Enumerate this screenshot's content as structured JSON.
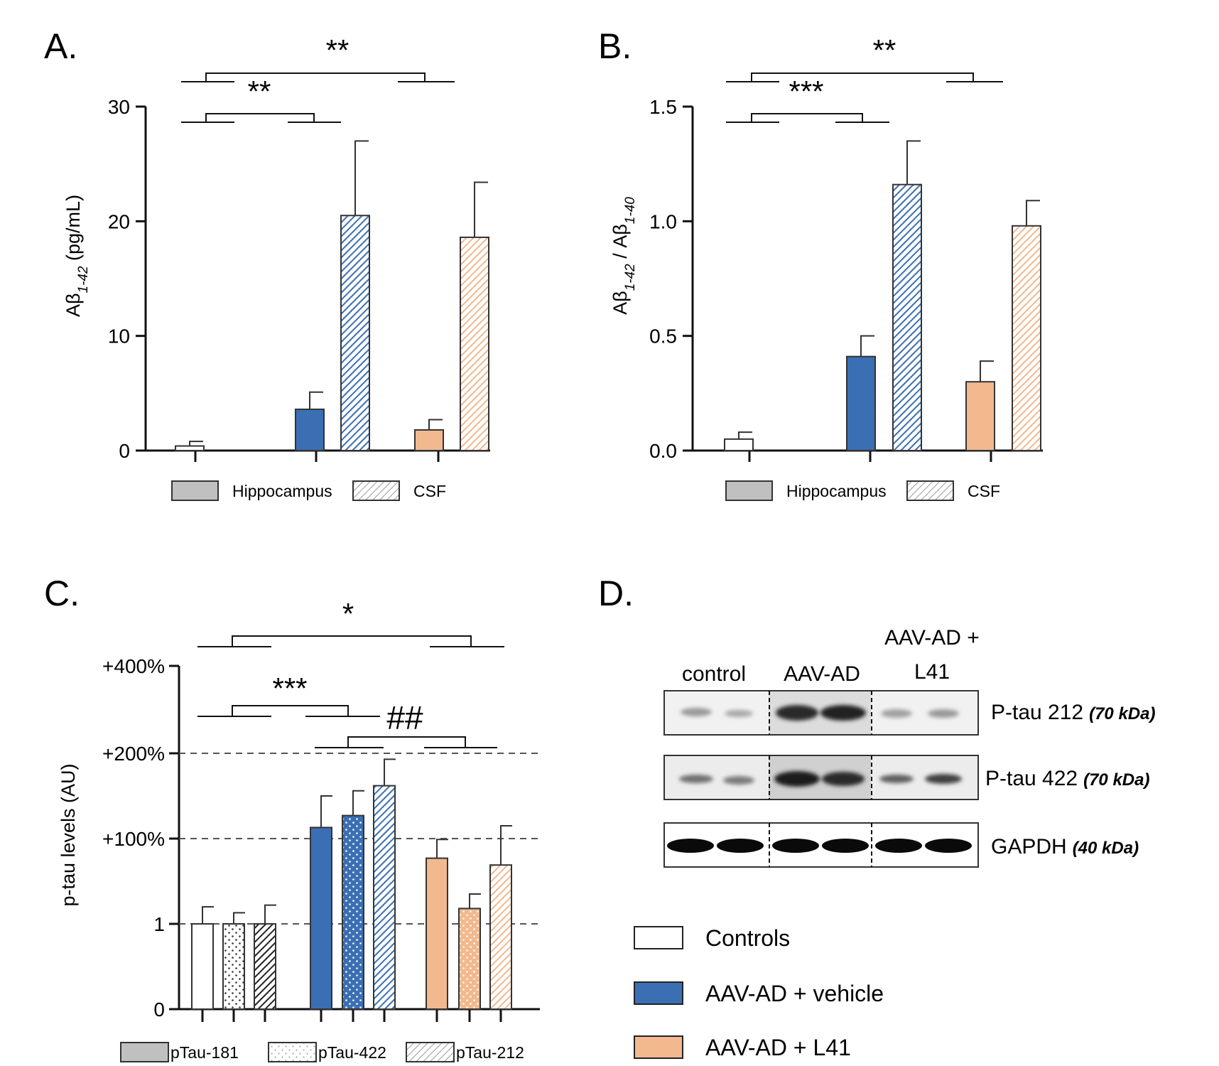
{
  "colors": {
    "controls": "#ffffff",
    "vehicle": "#3b6fb3",
    "l41": "#f2b98f",
    "outline": "#222222",
    "legend_gray": "#c0c0c0"
  },
  "chart_data": [
    {
      "panel": "A.",
      "type": "bar",
      "ylabel_main": "Aβ",
      "ylabel_sub": "1-42",
      "ylabel_rest": " (pg/mL)",
      "ylim": [
        0,
        30
      ],
      "yticks": [
        "0",
        "10",
        "20",
        "30"
      ],
      "groups": [
        "Controls",
        "AAV-AD + vehicle",
        "AAV-AD + L41"
      ],
      "series": [
        {
          "name": "Hippocampus",
          "pattern": "solid",
          "values": [
            0.4,
            3.6,
            1.8
          ],
          "errors": [
            0.4,
            1.5,
            0.9
          ]
        },
        {
          "name": "CSF",
          "pattern": "hatch",
          "values": [
            null,
            20.5,
            18.6
          ],
          "errors": [
            null,
            6.5,
            4.8
          ]
        }
      ],
      "legend": [
        "Hippocampus",
        "CSF"
      ],
      "significance": [
        "**",
        "**"
      ]
    },
    {
      "panel": "B.",
      "type": "bar",
      "ylabel_main": "Aβ",
      "ylabel_sub": "1-42",
      "ylabel_mid": " / Aβ",
      "ylabel_sub2": "1-40",
      "ylim": [
        0,
        1.5
      ],
      "yticks": [
        "0.0",
        "0.5",
        "1.0",
        "1.5"
      ],
      "groups": [
        "Controls",
        "AAV-AD + vehicle",
        "AAV-AD + L41"
      ],
      "series": [
        {
          "name": "Hippocampus",
          "pattern": "solid",
          "values": [
            0.05,
            0.41,
            0.3
          ],
          "errors": [
            0.03,
            0.09,
            0.09
          ]
        },
        {
          "name": "CSF",
          "pattern": "hatch",
          "values": [
            null,
            1.16,
            0.98
          ],
          "errors": [
            null,
            0.19,
            0.11
          ]
        }
      ],
      "legend": [
        "Hippocampus",
        "CSF"
      ],
      "significance": [
        "***",
        "**"
      ]
    },
    {
      "panel": "C.",
      "type": "bar",
      "ylabel": "p-tau levels (AU)",
      "yticks": [
        "0",
        "1",
        "+100%",
        "+200%",
        "+400%"
      ],
      "groups": [
        "Controls",
        "AAV-AD + vehicle",
        "AAV-AD + L41"
      ],
      "series": [
        {
          "name": "pTau-181",
          "pattern": "solid",
          "values": [
            1.0,
            2.13,
            1.77
          ],
          "errors": [
            0.2,
            0.37,
            0.22
          ]
        },
        {
          "name": "pTau-422",
          "pattern": "dots",
          "values": [
            1.0,
            2.27,
            1.18
          ],
          "errors": [
            0.13,
            0.29,
            0.17
          ]
        },
        {
          "name": "pTau-212",
          "pattern": "hatch",
          "values": [
            1.0,
            2.62,
            1.69
          ],
          "errors": [
            0.22,
            0.31,
            0.46
          ]
        }
      ],
      "legend": [
        "pTau-181",
        "pTau-422",
        "pTau-212"
      ],
      "significance": [
        "*",
        "***",
        "##"
      ]
    }
  ],
  "western_blot": {
    "panel": "D.",
    "lanes": [
      "control",
      "AAV-AD",
      "AAV-AD +",
      "L41"
    ],
    "rows": [
      {
        "name": "P-tau 212",
        "kda": "(70 kDa)"
      },
      {
        "name": "P-tau 422",
        "kda": "(70 kDa)"
      },
      {
        "name": "GAPDH",
        "kda": "(40 kDa)"
      }
    ]
  },
  "legend_main": [
    "Controls",
    "AAV-AD + vehicle",
    "AAV-AD + L41"
  ]
}
